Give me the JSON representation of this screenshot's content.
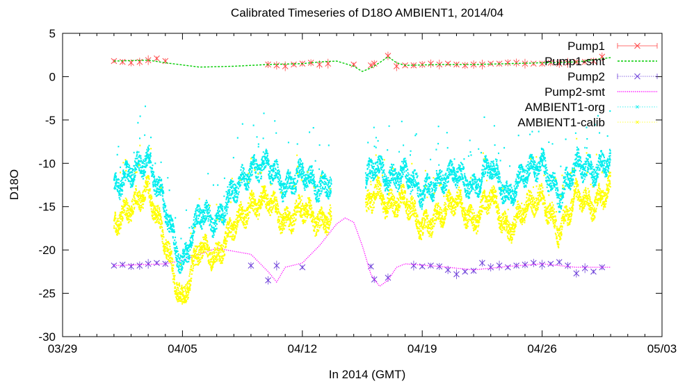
{
  "chart_data": {
    "type": "line",
    "title": "Calibrated Timeseries of D18O AMBIENT1, 2014/04",
    "xlabel": "In 2014 (GMT)",
    "ylabel": "D18O",
    "xlim": [
      "2014-03-29",
      "2014-05-03"
    ],
    "ylim": [
      -30,
      5
    ],
    "x_ticks": [
      "03/29",
      "04/05",
      "04/12",
      "04/19",
      "04/26",
      "05/03"
    ],
    "y_ticks": [
      5,
      0,
      -5,
      -10,
      -15,
      -20,
      -25,
      -30
    ],
    "grid": false,
    "legend_position": "top-right",
    "series": [
      {
        "name": "Pump1",
        "style": "points-errorbars",
        "color": "#ff4040",
        "x": [
          "2014-04-01",
          "2014-04-01.5",
          "2014-04-02",
          "2014-04-02.5",
          "2014-04-03",
          "2014-04-03.5",
          "2014-04-04",
          "2014-04-10",
          "2014-04-10.5",
          "2014-04-11",
          "2014-04-11.5",
          "2014-04-12",
          "2014-04-12.5",
          "2014-04-13",
          "2014-04-13.5",
          "2014-04-15",
          "2014-04-16",
          "2014-04-16.2",
          "2014-04-17",
          "2014-04-17.5",
          "2014-04-18",
          "2014-04-18.5",
          "2014-04-19",
          "2014-04-19.5",
          "2014-04-20",
          "2014-04-20.5",
          "2014-04-21",
          "2014-04-21.5",
          "2014-04-22",
          "2014-04-22.5",
          "2014-04-23",
          "2014-04-23.5",
          "2014-04-24",
          "2014-04-24.5",
          "2014-04-25",
          "2014-04-25.5",
          "2014-04-26",
          "2014-04-26.5",
          "2014-04-27",
          "2014-04-27.5",
          "2014-04-28",
          "2014-04-28.5",
          "2014-04-29",
          "2014-04-29.5"
        ],
        "y": [
          1.8,
          1.7,
          1.6,
          1.7,
          1.9,
          2.1,
          1.8,
          1.4,
          1.3,
          1.2,
          1.4,
          1.5,
          1.6,
          1.4,
          1.5,
          1.4,
          1.3,
          1.5,
          2.4,
          1.2,
          1.3,
          1.3,
          1.4,
          1.5,
          1.4,
          1.5,
          1.4,
          1.3,
          1.4,
          1.4,
          1.5,
          1.5,
          1.6,
          1.6,
          1.5,
          1.5,
          1.5,
          1.6,
          1.5,
          1.6,
          1.7,
          1.7,
          1.8,
          2.3
        ]
      },
      {
        "name": "Pump1-smt",
        "style": "dashed-line",
        "color": "#00cc00",
        "x": [
          "2014-04-01",
          "2014-04-03",
          "2014-04-04",
          "2014-04-06",
          "2014-04-08",
          "2014-04-10",
          "2014-04-12",
          "2014-04-13",
          "2014-04-14",
          "2014-04-15",
          "2014-04-15.5",
          "2014-04-16",
          "2014-04-16.5",
          "2014-04-17",
          "2014-04-17.5",
          "2014-04-18",
          "2014-04-20",
          "2014-04-22",
          "2014-04-24",
          "2014-04-26",
          "2014-04-28",
          "2014-04-30"
        ],
        "y": [
          1.8,
          1.9,
          1.6,
          1.1,
          1.2,
          1.4,
          1.5,
          1.7,
          1.8,
          1.2,
          0.6,
          1.0,
          1.6,
          2.3,
          1.6,
          1.3,
          1.4,
          1.4,
          1.5,
          1.6,
          1.7,
          2.2
        ]
      },
      {
        "name": "Pump2",
        "style": "points-errorbars",
        "color": "#6a3cd8",
        "x": [
          "2014-04-01",
          "2014-04-01.5",
          "2014-04-02",
          "2014-04-02.5",
          "2014-04-03",
          "2014-04-03.5",
          "2014-04-04",
          "2014-04-09",
          "2014-04-10",
          "2014-04-10.5",
          "2014-04-12",
          "2014-04-16",
          "2014-04-16.2",
          "2014-04-17",
          "2014-04-18.5",
          "2014-04-19",
          "2014-04-19.5",
          "2014-04-20",
          "2014-04-20.5",
          "2014-04-21",
          "2014-04-21.5",
          "2014-04-22",
          "2014-04-22.5",
          "2014-04-23",
          "2014-04-23.5",
          "2014-04-24",
          "2014-04-24.5",
          "2014-04-25",
          "2014-04-25.5",
          "2014-04-26",
          "2014-04-26.5",
          "2014-04-27",
          "2014-04-27.5",
          "2014-04-28",
          "2014-04-28.5",
          "2014-04-29",
          "2014-04-29.5"
        ],
        "y": [
          -21.8,
          -21.7,
          -21.9,
          -21.8,
          -21.6,
          -21.5,
          -21.6,
          -21.8,
          -23.5,
          -21.8,
          -22.0,
          -21.9,
          -23.4,
          -23.2,
          -21.8,
          -21.9,
          -21.8,
          -21.9,
          -22.3,
          -22.8,
          -22.5,
          -22.4,
          -21.5,
          -22.0,
          -21.8,
          -22.0,
          -21.8,
          -21.7,
          -21.5,
          -21.7,
          -21.6,
          -21.4,
          -21.8,
          -22.7,
          -22.1,
          -22.5,
          -22.0
        ]
      },
      {
        "name": "Pump2-smt",
        "style": "dotted-line",
        "color": "#ff00ff",
        "x": [
          "2014-04-01",
          "2014-04-04",
          "2014-04-05",
          "2014-04-07",
          "2014-04-09",
          "2014-04-10",
          "2014-04-10.5",
          "2014-04-11",
          "2014-04-12",
          "2014-04-13",
          "2014-04-14",
          "2014-04-14.5",
          "2014-04-15",
          "2014-04-15.5",
          "2014-04-16",
          "2014-04-16.5",
          "2014-04-17",
          "2014-04-17.5",
          "2014-04-18",
          "2014-04-20",
          "2014-04-22",
          "2014-04-24",
          "2014-04-26",
          "2014-04-28",
          "2014-04-30"
        ],
        "y": [
          -21.8,
          -21.6,
          -21.2,
          -19.8,
          -20.5,
          -22.5,
          -23.7,
          -22.0,
          -21.5,
          -19.5,
          -17.0,
          -16.3,
          -16.8,
          -19.5,
          -22.8,
          -24.2,
          -23.5,
          -22.0,
          -21.6,
          -21.9,
          -22.3,
          -21.9,
          -21.6,
          -22.0,
          -22.0
        ]
      },
      {
        "name": "AMBIENT1-org",
        "style": "dense-points",
        "color": "#00eeee",
        "x": [
          "2014-04-01",
          "2014-04-02",
          "2014-04-03",
          "2014-04-04",
          "2014-04-04.5",
          "2014-04-05",
          "2014-04-06",
          "2014-04-07",
          "2014-04-08",
          "2014-04-09",
          "2014-04-10",
          "2014-04-11",
          "2014-04-12",
          "2014-04-13",
          "2014-04-13.7",
          "2014-04-15.7",
          "2014-04-16.3",
          "2014-04-17",
          "2014-04-18",
          "2014-04-19",
          "2014-04-20",
          "2014-04-21",
          "2014-04-22",
          "2014-04-23",
          "2014-04-24",
          "2014-04-25",
          "2014-04-26",
          "2014-04-27",
          "2014-04-28",
          "2014-04-29",
          "2014-04-30"
        ],
        "y": [
          -13,
          -11,
          -9.5,
          -15,
          -19,
          -22,
          -15.5,
          -17,
          -13,
          -11,
          -10,
          -13,
          -11,
          -13,
          -12,
          -12,
          -10,
          -12,
          -11,
          -13.5,
          -12,
          -11,
          -13,
          -10,
          -14,
          -11,
          -10,
          -14,
          -10,
          -11,
          -9.5
        ]
      },
      {
        "name": "AMBIENT1-calib",
        "style": "dense-points",
        "color": "#ffff00",
        "x": [
          "2014-04-01",
          "2014-04-02",
          "2014-04-03",
          "2014-04-04",
          "2014-04-04.5",
          "2014-04-05",
          "2014-04-06",
          "2014-04-07",
          "2014-04-08",
          "2014-04-09",
          "2014-04-10",
          "2014-04-11",
          "2014-04-12",
          "2014-04-13",
          "2014-04-13.7",
          "2014-04-15.7",
          "2014-04-16.3",
          "2014-04-17",
          "2014-04-18",
          "2014-04-19",
          "2014-04-20",
          "2014-04-21",
          "2014-04-22",
          "2014-04-23",
          "2014-04-24",
          "2014-04-25",
          "2014-04-26",
          "2014-04-27",
          "2014-04-28",
          "2014-04-29",
          "2014-04-30"
        ],
        "y": [
          -17,
          -15,
          -13,
          -19,
          -23,
          -26,
          -19.5,
          -21,
          -17,
          -15,
          -14,
          -17,
          -15,
          -17,
          -16,
          -15.5,
          -13,
          -15,
          -14,
          -17.5,
          -16,
          -14,
          -17,
          -13.5,
          -18,
          -15,
          -14,
          -18,
          -13.5,
          -15,
          -12.5
        ]
      }
    ]
  }
}
